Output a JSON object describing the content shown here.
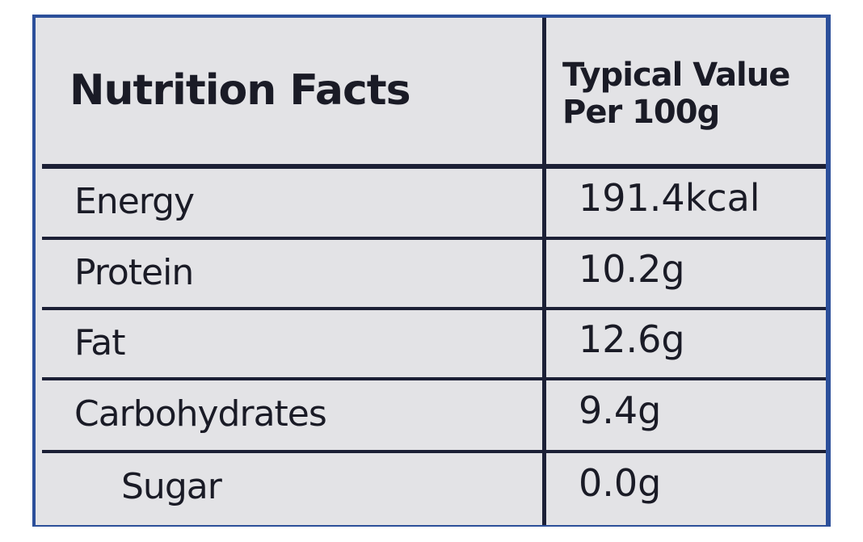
{
  "header": {
    "title": "Nutrition Facts",
    "column": "Typical Value Per 100g"
  },
  "table": {
    "rows": [
      [
        "Energy",
        "191.4kcal"
      ],
      [
        "Protein",
        "10.2g"
      ],
      [
        "Fat",
        "12.6g"
      ],
      [
        "Carbohydrates",
        "9.4g"
      ],
      [
        "Sugar",
        "0.0g"
      ]
    ]
  }
}
